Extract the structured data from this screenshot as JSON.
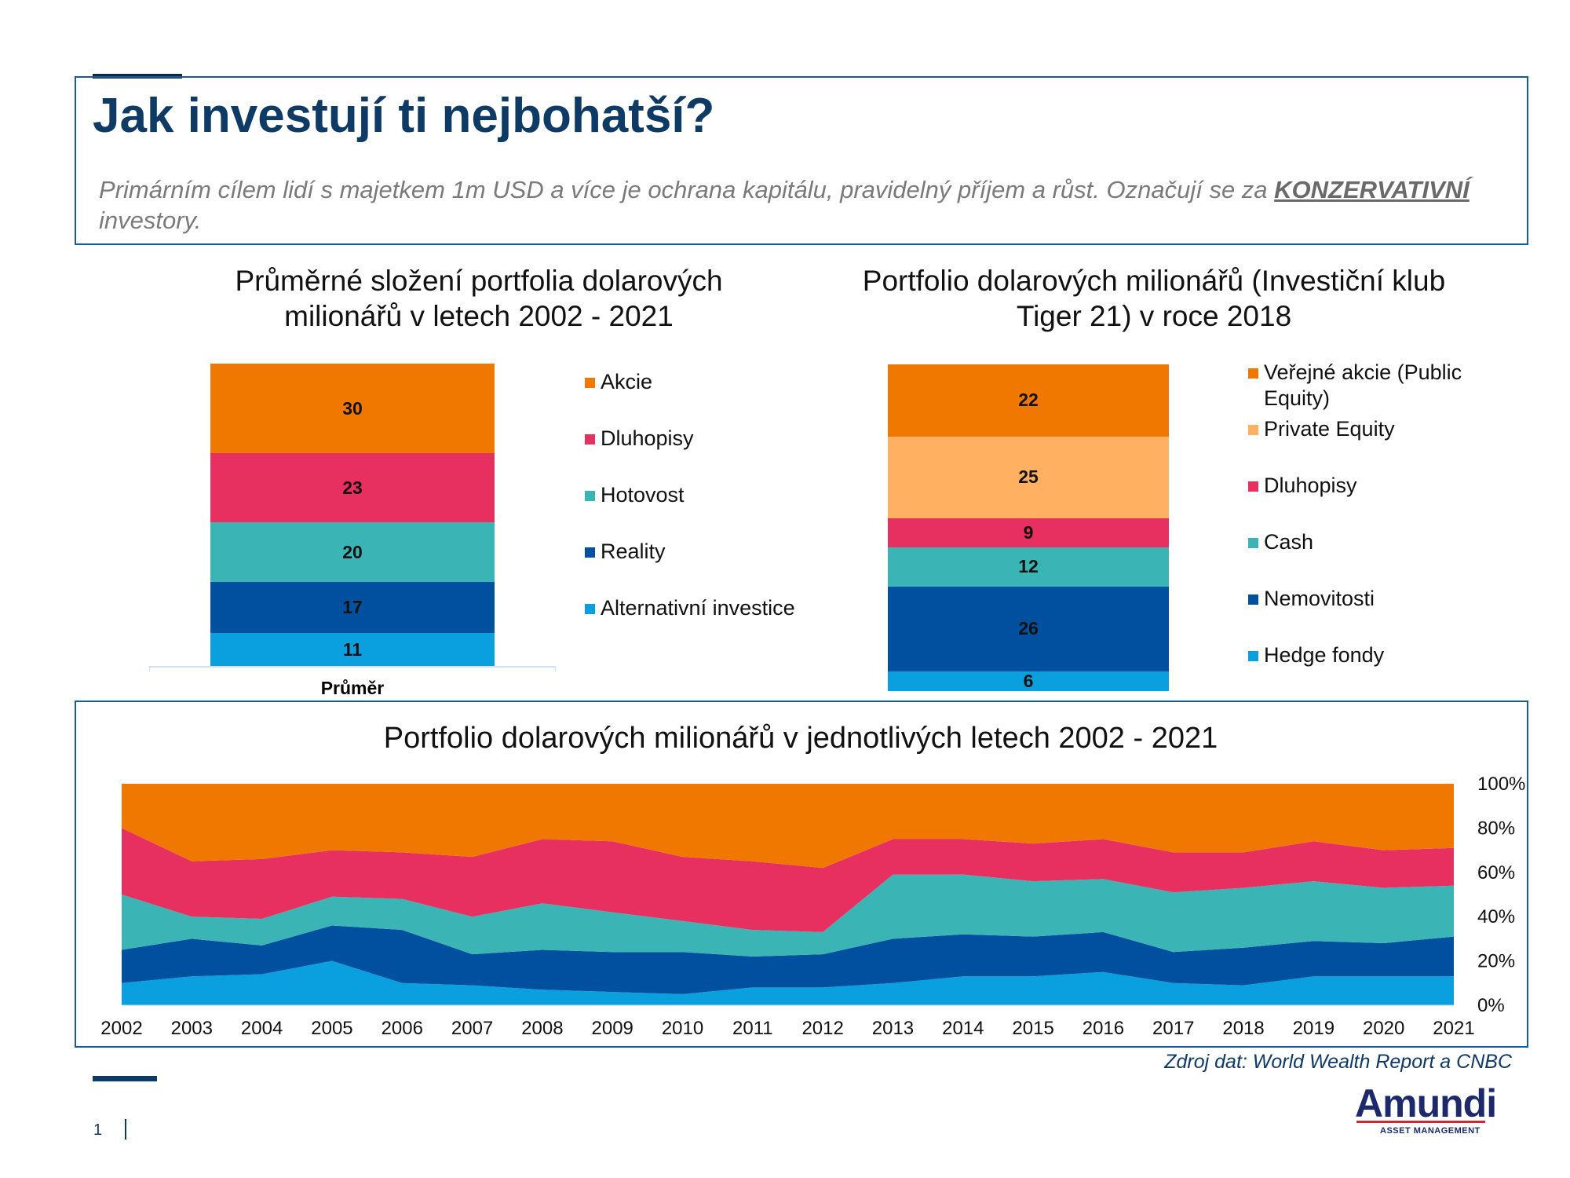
{
  "header": {
    "title": "Jak investují ti nejbohatší?",
    "subtitle_part1": "Primárním cílem lidí s majetkem 1m USD a více je ochrana kapitálu, pravidelný příjem a růst. Označují se za ",
    "subtitle_keyword": "KONZERVATIVNÍ",
    "subtitle_part2": " investory."
  },
  "chart_data": [
    {
      "type": "bar",
      "stacked": true,
      "title": "Průměrné složení portfolia dolarových milionářů v letech 2002 - 2021",
      "categories": [
        "Průměr"
      ],
      "series": [
        {
          "name": "Alternativní investice",
          "values": [
            11
          ],
          "color": "#0aa0e0"
        },
        {
          "name": "Reality",
          "values": [
            17
          ],
          "color": "#0050a0"
        },
        {
          "name": "Hotovost",
          "values": [
            20
          ],
          "color": "#3ab4b4"
        },
        {
          "name": "Dluhopisy",
          "values": [
            23
          ],
          "color": "#e83060"
        },
        {
          "name": "Akcie",
          "values": [
            30
          ],
          "color": "#f07800"
        }
      ],
      "legend": [
        "Akcie",
        "Dluhopisy",
        "Hotovost",
        "Reality",
        "Alternativní investice"
      ],
      "legend_position": "right"
    },
    {
      "type": "bar",
      "stacked": true,
      "title": "Portfolio dolarových milionářů (Investiční klub Tiger 21) v roce 2018",
      "categories": [
        ""
      ],
      "series": [
        {
          "name": "Hedge fondy",
          "values": [
            6
          ],
          "color": "#0aa0e0"
        },
        {
          "name": "Nemovitosti",
          "values": [
            26
          ],
          "color": "#0050a0"
        },
        {
          "name": "Cash",
          "values": [
            12
          ],
          "color": "#3ab4b4"
        },
        {
          "name": "Dluhopisy",
          "values": [
            9
          ],
          "color": "#e83060"
        },
        {
          "name": "Private Equity",
          "values": [
            25
          ],
          "color": "#ffb060"
        },
        {
          "name": "Veřejné akcie (Public Equity)",
          "values": [
            22
          ],
          "color": "#f07800"
        }
      ],
      "legend": [
        "Veřejné akcie (Public Equity)",
        "Private Equity",
        "Dluhopisy",
        "Cash",
        "Nemovitosti",
        "Hedge fondy"
      ],
      "legend_position": "right"
    },
    {
      "type": "area",
      "stacked": true,
      "title": "Portfolio dolarových milionářů v jednotlivých letech 2002 - 2021",
      "x": [
        "2002",
        "2003",
        "2004",
        "2005",
        "2006",
        "2007",
        "2008",
        "2009",
        "2010",
        "2011",
        "2012",
        "2013",
        "2014",
        "2015",
        "2016",
        "2017",
        "2018",
        "2019",
        "2020",
        "2021"
      ],
      "ylim": [
        0,
        100
      ],
      "yticks": [
        "0%",
        "20%",
        "40%",
        "60%",
        "80%",
        "100%"
      ],
      "y_axis_side": "right",
      "series": [
        {
          "name": "Alternativní investice",
          "color": "#0aa0e0",
          "values": [
            10,
            13,
            14,
            20,
            10,
            9,
            7,
            6,
            5,
            8,
            8,
            10,
            13,
            13,
            15,
            10,
            9,
            13,
            13,
            13
          ]
        },
        {
          "name": "Reality",
          "color": "#0050a0",
          "values": [
            15,
            17,
            13,
            16,
            24,
            14,
            18,
            18,
            19,
            14,
            15,
            20,
            19,
            18,
            18,
            14,
            17,
            16,
            15,
            18
          ]
        },
        {
          "name": "Hotovost",
          "color": "#3ab4b4",
          "values": [
            25,
            10,
            12,
            13,
            14,
            17,
            21,
            18,
            14,
            12,
            10,
            29,
            27,
            25,
            24,
            27,
            27,
            27,
            25,
            23
          ]
        },
        {
          "name": "Dluhopisy",
          "color": "#e83060",
          "values": [
            30,
            25,
            27,
            21,
            21,
            27,
            29,
            32,
            29,
            31,
            29,
            16,
            16,
            17,
            18,
            18,
            16,
            18,
            17,
            17
          ]
        },
        {
          "name": "Akcie",
          "color": "#f07800",
          "values": [
            20,
            35,
            34,
            30,
            31,
            33,
            25,
            26,
            33,
            35,
            38,
            25,
            25,
            27,
            25,
            31,
            31,
            26,
            30,
            29
          ]
        }
      ]
    }
  ],
  "source": "Zdroj dat: World Wealth Report a CNBC",
  "footer": {
    "page_number": "1"
  },
  "logo": {
    "name": "Amundi",
    "subtitle": "ASSET MANAGEMENT"
  }
}
